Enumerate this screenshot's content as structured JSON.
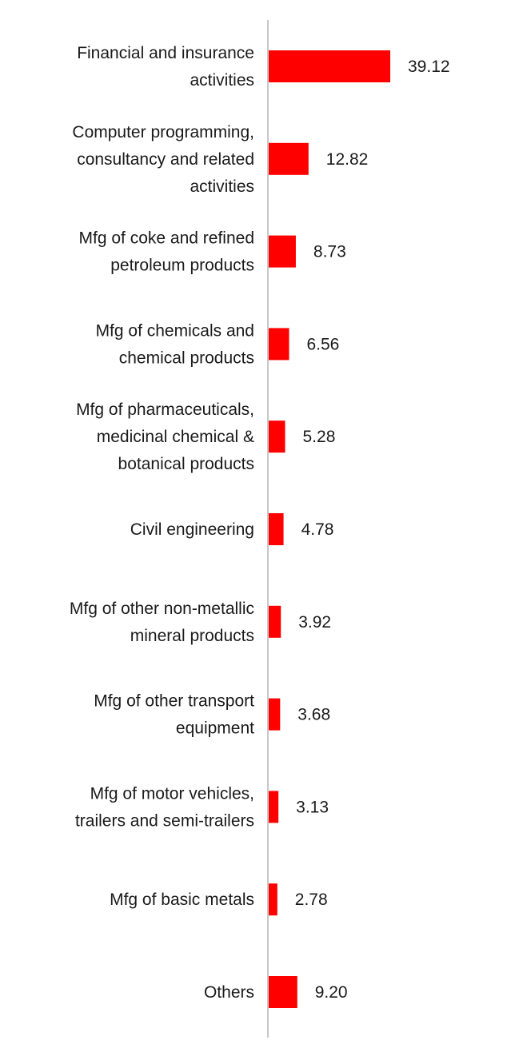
{
  "chart_data": {
    "type": "bar",
    "orientation": "horizontal",
    "title": "",
    "xlabel": "",
    "ylabel": "",
    "grid": false,
    "legend": "none",
    "bar_color": "#ff0000",
    "axis_color": "#c8c8c8",
    "xlim": [
      0,
      40
    ],
    "categories": [
      [
        "Financial and insurance",
        "activities"
      ],
      [
        "Computer programming,",
        "consultancy and related",
        "activities"
      ],
      [
        "Mfg of coke and refined",
        "petroleum products"
      ],
      [
        "Mfg of chemicals and",
        "chemical products"
      ],
      [
        "Mfg of pharmaceuticals,",
        "medicinal chemical &",
        "botanical products"
      ],
      [
        "Civil engineering"
      ],
      [
        "Mfg of other non-metallic",
        "mineral products"
      ],
      [
        "Mfg of other transport",
        "equipment"
      ],
      [
        "Mfg of motor vehicles,",
        "trailers and semi-trailers"
      ],
      [
        "Mfg of basic metals"
      ],
      [
        "Others"
      ]
    ],
    "values": [
      39.12,
      12.82,
      8.73,
      6.56,
      5.28,
      4.78,
      3.92,
      3.68,
      3.13,
      2.78,
      9.2
    ],
    "value_labels": [
      "39.12",
      "12.82",
      "8.73",
      "6.56",
      "5.28",
      "4.78",
      "3.92",
      "3.68",
      "3.13",
      "2.78",
      "9.20"
    ]
  }
}
